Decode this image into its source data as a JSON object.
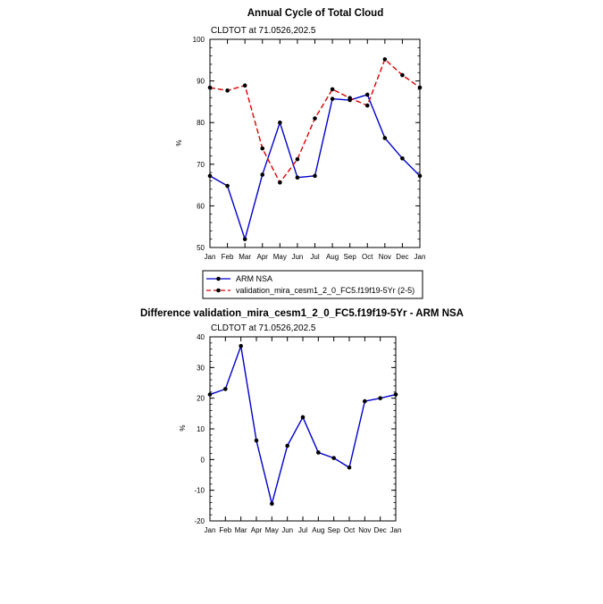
{
  "chart_data": [
    {
      "type": "line",
      "title": "Annual Cycle of Total Cloud",
      "subtitle": "CLDTOT at 71.0526,202.5",
      "xlabel": "",
      "ylabel": "%",
      "categories": [
        "Jan",
        "Feb",
        "Mar",
        "Apr",
        "May",
        "Jun",
        "Jul",
        "Aug",
        "Sep",
        "Oct",
        "Nov",
        "Dec",
        "Jan"
      ],
      "ylim": [
        50,
        100
      ],
      "yticks": [
        50,
        60,
        70,
        80,
        90,
        100
      ],
      "grid": false,
      "legend": "bottom",
      "series": [
        {
          "name": "ARM NSA",
          "color": "#0000cc",
          "style": "solid",
          "values": [
            67.2,
            64.8,
            52.0,
            67.5,
            80.0,
            66.8,
            67.2,
            85.7,
            85.4,
            86.7,
            76.3,
            71.4,
            67.2
          ]
        },
        {
          "name": "validation_mira_cesm1_2_0_FC5.f19f19-5Yr (2-5)",
          "color": "#dd0000",
          "style": "dashed",
          "values": [
            88.4,
            87.7,
            88.9,
            73.8,
            65.6,
            71.2,
            81.0,
            88.0,
            85.9,
            84.1,
            95.2,
            91.4,
            88.4
          ]
        }
      ]
    },
    {
      "type": "line",
      "title": "Difference validation_mira_cesm1_2_0_FC5.f19f19-5Yr - ARM NSA",
      "subtitle": "CLDTOT at 71.0526,202.5",
      "xlabel": "",
      "ylabel": "%",
      "categories": [
        "Jan",
        "Feb",
        "Mar",
        "Apr",
        "May",
        "Jun",
        "Jul",
        "Aug",
        "Sep",
        "Oct",
        "Nov",
        "Dec",
        "Jan"
      ],
      "ylim": [
        -20,
        40
      ],
      "yticks": [
        -20,
        -10,
        0,
        10,
        20,
        30,
        40
      ],
      "grid": false,
      "series": [
        {
          "name": "Difference",
          "color": "#0000cc",
          "style": "solid",
          "values": [
            21.2,
            23.0,
            37.0,
            6.2,
            -14.4,
            4.5,
            13.8,
            2.3,
            0.5,
            -2.6,
            19.0,
            20.0,
            21.2
          ]
        }
      ]
    }
  ]
}
